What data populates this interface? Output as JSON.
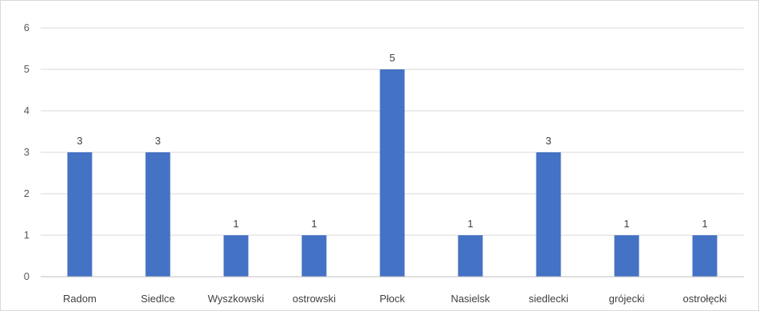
{
  "chart_data": {
    "type": "bar",
    "title": "",
    "xlabel": "",
    "ylabel": "",
    "categories": [
      "Radom",
      "Siedlce",
      "Wyszkowski",
      "ostrowski",
      "Płock",
      "Nasielsk",
      "siedlecki",
      "grójecki",
      "ostrołęcki"
    ],
    "values": [
      3,
      3,
      1,
      1,
      5,
      1,
      3,
      1,
      1
    ],
    "data_labels": [
      "3",
      "3",
      "1",
      "1",
      "5",
      "1",
      "3",
      "1",
      "1"
    ],
    "ylim": [
      0,
      6
    ],
    "yticks": [
      "0",
      "1",
      "2",
      "3",
      "4",
      "5",
      "6"
    ],
    "grid": true,
    "legend": "none",
    "colors": {
      "bar": "#4472c4",
      "grid": "#d9d9d9",
      "axis": "#bfbfbf"
    }
  }
}
